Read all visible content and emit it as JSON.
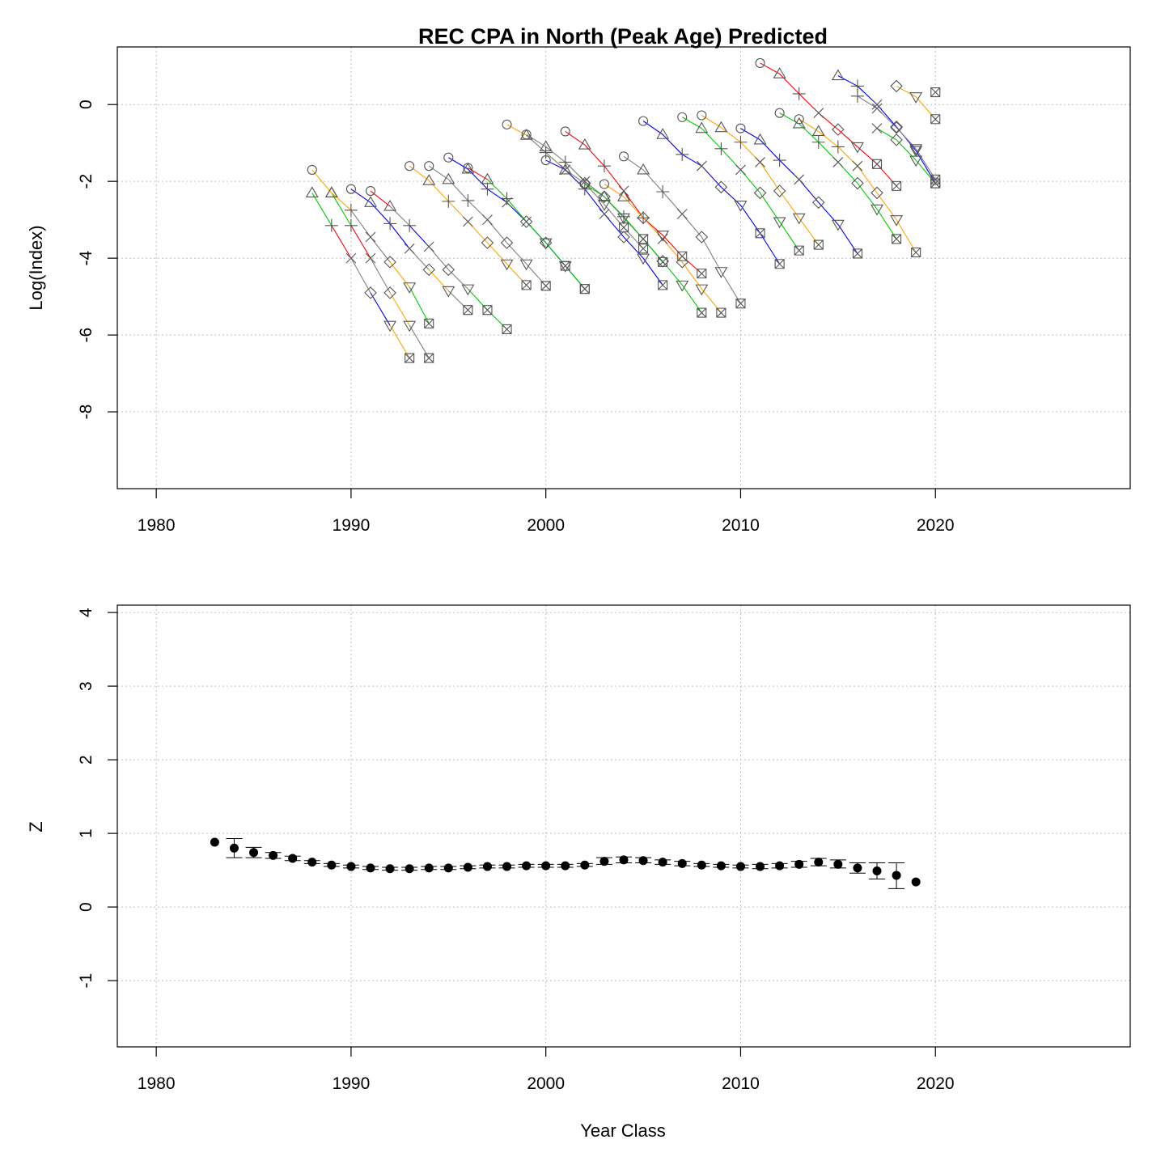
{
  "chart_data": [
    {
      "type": "line",
      "title": "REC CPA in North (Peak Age) Predicted",
      "xlabel": "",
      "ylabel": "Log(Index)",
      "xlim": [
        1978,
        2030
      ],
      "ylim": [
        -10,
        1.5
      ],
      "xticks": [
        "1980",
        "1990",
        "2000",
        "2010",
        "2020"
      ],
      "yticks": [
        "-8",
        "-6",
        "-4",
        "-2",
        "0"
      ],
      "ytick_values": [
        -8,
        -6,
        -4,
        -2,
        0
      ],
      "xtick_values": [
        1980,
        1990,
        2000,
        2010,
        2020
      ],
      "grid": true,
      "legend": "none",
      "marker_sequence": [
        "circle",
        "triangle-up",
        "plus",
        "cross",
        "diamond",
        "triangle-down",
        "boxed-x"
      ],
      "segment_colors": [
        "#ff0000",
        "#ff0000",
        "#00cc00",
        "#0000ff",
        "#ffa500",
        "#808080",
        "#ff0000"
      ],
      "cohort_start_years": [
        1988,
        1989,
        1990,
        1991,
        1993,
        1994,
        1995,
        1996,
        1998,
        1999,
        2000,
        2001,
        2002,
        2003,
        2004,
        2005,
        2007,
        2008,
        2009,
        2010,
        2011,
        2012,
        2013,
        2014,
        2015,
        2016,
        2017,
        2018
      ],
      "series": [
        {
          "start": 1988,
          "values": [
            -1.7,
            -2.3,
            -3.15,
            -4.0,
            -4.9,
            -5.75,
            -6.6
          ],
          "colors": [
            "#ffa500",
            "#00cc00",
            "#ff0000",
            "#808080",
            "#ffa500",
            "#808080"
          ]
        },
        {
          "start": 1988,
          "values": [
            -2.3,
            -3.15,
            -4.0,
            -4.9,
            -5.75,
            -6.6
          ],
          "colors": [
            "#00cc00",
            "#ff0000",
            "#808080",
            "#0000ff",
            "#ffa500"
          ]
        },
        {
          "start": 1989,
          "values": [
            -2.3,
            -2.75,
            -3.45,
            -4.1,
            -4.75,
            -5.7
          ],
          "colors": [
            "#ffa500",
            "#808080",
            "#808080",
            "#ffa500",
            "#00cc00"
          ]
        },
        {
          "start": 1990,
          "values": [
            -2.2,
            -2.55,
            -3.1,
            -3.75,
            -4.3,
            -4.85,
            -5.35
          ],
          "colors": [
            "#0000ff",
            "#0000ff",
            "#0000ff",
            "#808080",
            "#ffa500",
            "#808080"
          ]
        },
        {
          "start": 1991,
          "values": [
            -2.25,
            -2.65,
            -3.15,
            -3.7,
            -4.3,
            -4.8,
            -5.35,
            -5.85
          ],
          "colors": [
            "#ff0000",
            "#808080",
            "#0000ff",
            "#808080",
            "#808080",
            "#00cc00",
            "#00cc00"
          ]
        },
        {
          "start": 1993,
          "values": [
            -1.6,
            -1.98,
            -2.52,
            -3.05,
            -3.6,
            -4.15,
            -4.7
          ],
          "colors": [
            "#ffa500",
            "#ffa500",
            "#ffa500",
            "#ffa500",
            "#ffa500",
            "#ffa500"
          ]
        },
        {
          "start": 1994,
          "values": [
            -1.6,
            -1.95,
            -2.5,
            -3.0,
            -3.6,
            -4.15,
            -4.72
          ],
          "colors": [
            "#808080",
            "#808080",
            "#808080",
            "#808080",
            "#808080",
            "#808080"
          ]
        },
        {
          "start": 1995,
          "values": [
            -1.38,
            -1.68,
            -2.2,
            -2.55,
            -3.05,
            -3.6,
            -4.2,
            -4.8
          ],
          "colors": [
            "#0000ff",
            "#0000ff",
            "#0000ff",
            "#0000ff",
            "#0000ff",
            "#0000ff",
            "#0000ff"
          ]
        },
        {
          "start": 1996,
          "values": [
            -1.65,
            -1.95,
            -2.45,
            -3.05,
            -3.6,
            -4.2,
            -4.8
          ],
          "colors": [
            "#ff0000",
            "#00cc00",
            "#00cc00",
            "#00cc00",
            "#00cc00",
            "#00cc00"
          ]
        },
        {
          "start": 1998,
          "values": [
            -0.52,
            -0.8,
            -1.25,
            -1.7,
            -2.05,
            -2.6,
            -3.2,
            -3.75
          ],
          "colors": [
            "#ffa500",
            "#808080",
            "#808080",
            "#808080",
            "#808080",
            "#808080",
            "#808080"
          ]
        },
        {
          "start": 1999,
          "values": [
            -0.78,
            -1.1,
            -1.5,
            -2.0,
            -2.4,
            -2.95,
            -3.5,
            -4.1
          ],
          "colors": [
            "#808080",
            "#808080",
            "#808080",
            "#808080",
            "#808080",
            "#808080",
            "#808080"
          ]
        },
        {
          "start": 2000,
          "values": [
            -1.45,
            -1.7,
            -2.2,
            -2.85,
            -3.45,
            -4.0,
            -4.7
          ],
          "colors": [
            "#0000ff",
            "#0000ff",
            "#0000ff",
            "#0000ff",
            "#0000ff",
            "#0000ff"
          ]
        },
        {
          "start": 2001,
          "values": [
            -0.7,
            -1.05,
            -1.6,
            -2.25,
            -2.95,
            -3.4,
            -3.95,
            -4.4
          ],
          "colors": [
            "#ff0000",
            "#ff0000",
            "#ff0000",
            "#ff0000",
            "#ff0000",
            "#ff0000",
            "#ff0000"
          ]
        },
        {
          "start": 2002,
          "values": [
            -2.07,
            -2.4,
            -2.92,
            -3.5,
            -4.08,
            -4.7,
            -5.42
          ],
          "colors": [
            "#00cc00",
            "#00cc00",
            "#00cc00",
            "#00cc00",
            "#00cc00",
            "#00cc00"
          ]
        },
        {
          "start": 2003,
          "values": [
            -2.07,
            -2.4,
            -2.95,
            -3.5,
            -4.1,
            -4.8,
            -5.42
          ],
          "colors": [
            "#ffa500",
            "#ffa500",
            "#ffa500",
            "#ffa500",
            "#ffa500",
            "#ffa500"
          ]
        },
        {
          "start": 2004,
          "values": [
            -1.35,
            -1.7,
            -2.27,
            -2.85,
            -3.45,
            -4.35,
            -5.18
          ],
          "colors": [
            "#808080",
            "#808080",
            "#808080",
            "#808080",
            "#808080",
            "#808080"
          ]
        },
        {
          "start": 2005,
          "values": [
            -0.43,
            -0.78,
            -1.3,
            -1.6,
            -2.15,
            -2.62,
            -3.35,
            -4.15
          ],
          "colors": [
            "#0000ff",
            "#0000ff",
            "#0000ff",
            "#0000ff",
            "#0000ff",
            "#0000ff",
            "#0000ff"
          ]
        },
        {
          "start": 2007,
          "values": [
            -0.33,
            -0.62,
            -1.15,
            -1.7,
            -2.3,
            -3.05,
            -3.8
          ],
          "colors": [
            "#00cc00",
            "#00cc00",
            "#00cc00",
            "#00cc00",
            "#00cc00",
            "#00cc00"
          ]
        },
        {
          "start": 2008,
          "values": [
            -0.28,
            -0.6,
            -0.98,
            -1.5,
            -2.25,
            -2.95,
            -3.65
          ],
          "colors": [
            "#ffa500",
            "#ffa500",
            "#ffa500",
            "#ffa500",
            "#ffa500",
            "#ffa500"
          ]
        },
        {
          "start": 2010,
          "values": [
            -0.62,
            -0.92,
            -1.45,
            -1.95,
            -2.55,
            -3.12,
            -3.88
          ],
          "colors": [
            "#0000ff",
            "#0000ff",
            "#0000ff",
            "#0000ff",
            "#0000ff",
            "#0000ff"
          ]
        },
        {
          "start": 2011,
          "values": [
            1.08,
            0.8,
            0.28,
            -0.22,
            -0.65,
            -1.1,
            -1.55,
            -2.12
          ],
          "colors": [
            "#ff0000",
            "#ff0000",
            "#ff0000",
            "#ff0000",
            "#ff0000",
            "#ff0000",
            "#ff0000"
          ]
        },
        {
          "start": 2012,
          "values": [
            -0.22,
            -0.5,
            -0.98,
            -1.5,
            -2.05,
            -2.72,
            -3.5
          ],
          "colors": [
            "#00cc00",
            "#00cc00",
            "#00cc00",
            "#00cc00",
            "#00cc00",
            "#00cc00"
          ]
        },
        {
          "start": 2013,
          "values": [
            -0.38,
            -0.7,
            -1.1,
            -1.6,
            -2.3,
            -3.0,
            -3.85
          ],
          "colors": [
            "#ffa500",
            "#ffa500",
            "#ffa500",
            "#ffa500",
            "#ffa500",
            "#ffa500"
          ]
        },
        {
          "start": 2015,
          "values": [
            0.75,
            0.48,
            0.0,
            -0.58,
            -1.2,
            -2.05
          ],
          "colors": [
            "#0000ff",
            "#0000ff",
            "#0000ff",
            "#0000ff",
            "#0000ff"
          ]
        },
        {
          "start": 2016,
          "values": [
            0.22,
            -0.1,
            -0.6,
            -1.15,
            -1.95
          ],
          "colors": [
            "#808080",
            "#808080",
            "#808080",
            "#808080"
          ]
        },
        {
          "start": 2017,
          "values": [
            -0.62,
            -0.92,
            -1.45,
            -2.05
          ],
          "colors": [
            "#00cc00",
            "#00cc00",
            "#00cc00"
          ]
        },
        {
          "start": 2018,
          "values": [
            0.48,
            0.2,
            -0.38
          ],
          "colors": [
            "#ffa500",
            "#ffa500"
          ]
        },
        {
          "start": 2020,
          "values": [
            0.32
          ],
          "colors": []
        }
      ]
    },
    {
      "type": "scatter",
      "title": "",
      "xlabel": "Year Class",
      "ylabel": "Z",
      "xlim": [
        1978,
        2030
      ],
      "ylim": [
        -1.9,
        4.1
      ],
      "xticks": [
        "1980",
        "1990",
        "2000",
        "2010",
        "2020"
      ],
      "yticks": [
        "-1",
        "0",
        "1",
        "2",
        "3",
        "4"
      ],
      "xtick_values": [
        1980,
        1990,
        2000,
        2010,
        2020
      ],
      "ytick_values": [
        -1,
        0,
        1,
        2,
        3,
        4
      ],
      "grid": true,
      "legend": "none",
      "x": [
        1983,
        1984,
        1985,
        1986,
        1987,
        1988,
        1989,
        1990,
        1991,
        1992,
        1993,
        1994,
        1995,
        1996,
        1997,
        1998,
        1999,
        2000,
        2001,
        2002,
        2003,
        2004,
        2005,
        2006,
        2007,
        2008,
        2009,
        2010,
        2011,
        2012,
        2013,
        2014,
        2015,
        2016,
        2017,
        2018,
        2019
      ],
      "y": [
        0.88,
        0.8,
        0.74,
        0.7,
        0.66,
        0.61,
        0.57,
        0.55,
        0.53,
        0.52,
        0.52,
        0.53,
        0.53,
        0.54,
        0.55,
        0.55,
        0.56,
        0.56,
        0.56,
        0.57,
        0.62,
        0.64,
        0.63,
        0.61,
        0.59,
        0.57,
        0.56,
        0.55,
        0.55,
        0.56,
        0.58,
        0.61,
        0.58,
        0.53,
        0.49,
        0.43,
        0.34
      ],
      "error_low": [
        0.88,
        0.67,
        0.67,
        0.66,
        0.63,
        0.59,
        0.55,
        0.53,
        0.51,
        0.5,
        0.5,
        0.51,
        0.51,
        0.52,
        0.53,
        0.53,
        0.54,
        0.54,
        0.54,
        0.55,
        0.58,
        0.6,
        0.6,
        0.58,
        0.56,
        0.55,
        0.54,
        0.53,
        0.52,
        0.53,
        0.54,
        0.56,
        0.53,
        0.46,
        0.38,
        0.25,
        0.34
      ],
      "error_high": [
        0.88,
        0.93,
        0.81,
        0.74,
        0.69,
        0.63,
        0.59,
        0.57,
        0.55,
        0.54,
        0.54,
        0.55,
        0.55,
        0.56,
        0.57,
        0.57,
        0.58,
        0.58,
        0.58,
        0.59,
        0.67,
        0.68,
        0.67,
        0.64,
        0.62,
        0.59,
        0.58,
        0.57,
        0.58,
        0.59,
        0.62,
        0.66,
        0.64,
        0.6,
        0.6,
        0.6,
        0.34
      ]
    }
  ]
}
